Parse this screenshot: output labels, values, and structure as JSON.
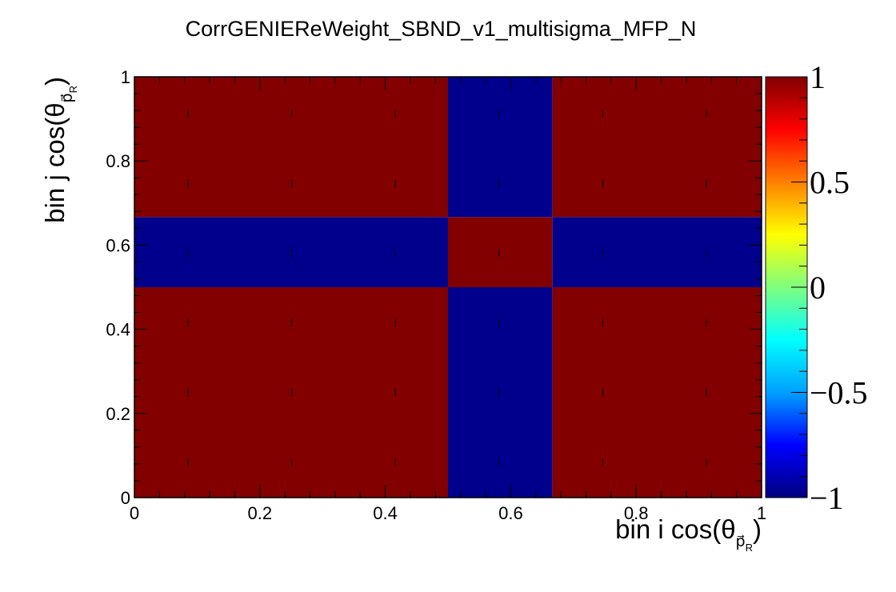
{
  "chart_data": {
    "type": "heatmap",
    "title": "CorrGENIEReWeight_SBND_v1_multisigma_MFP_N",
    "xlabel": {
      "prefix": "bin i cos(θ",
      "sub": "p⃗",
      "subsub": "R",
      "suffix": ")"
    },
    "ylabel": {
      "prefix": "bin j cos(θ",
      "sub": "p⃗",
      "subsub": "R",
      "suffix": ")"
    },
    "x_edges": [
      0,
      0.5,
      0.6667,
      1
    ],
    "y_edges": [
      0,
      0.5,
      0.6667,
      1
    ],
    "z": [
      [
        1,
        -1,
        1
      ],
      [
        -1,
        1,
        -1
      ],
      [
        1,
        -1,
        1
      ]
    ],
    "xlim": [
      0,
      1
    ],
    "ylim": [
      0,
      1
    ],
    "zlim": [
      -1,
      1
    ],
    "x_ticks": [
      0,
      0.2,
      0.4,
      0.6,
      0.8,
      1
    ],
    "x_tick_labels": [
      "0",
      "0.2",
      "0.4",
      "0.6",
      "0.8",
      "1"
    ],
    "y_ticks": [
      0,
      0.2,
      0.4,
      0.6,
      0.8,
      1
    ],
    "y_tick_labels": [
      "0",
      "0.2",
      "0.4",
      "0.6",
      "0.8",
      "1"
    ],
    "colorbar_ticks": [
      -1,
      -0.5,
      0,
      0.5,
      1
    ],
    "colorbar_tick_labels": [
      "−1",
      "−0.5",
      "0",
      "0.5",
      "1"
    ],
    "colormap": "rainbow",
    "colormap_stops": [
      "#00007f",
      "#0000ff",
      "#00a0ff",
      "#00ffff",
      "#7fff7f",
      "#ffff00",
      "#ff8000",
      "#ff0000",
      "#800000"
    ],
    "positive_color": "#820000",
    "negative_color": "#00008c",
    "grid": false,
    "bin_markers": true
  }
}
